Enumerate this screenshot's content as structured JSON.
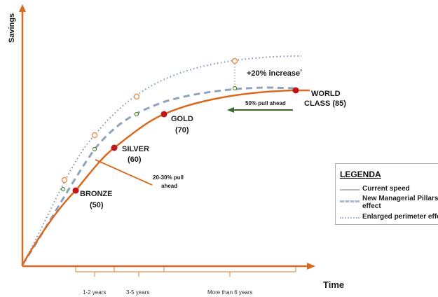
{
  "axes": {
    "y_label": "Savings",
    "x_label": "Time"
  },
  "levels": [
    {
      "name": "BRONZE",
      "value": "(50)"
    },
    {
      "name": "SILVER",
      "value": "(60)"
    },
    {
      "name": "GOLD",
      "value": "(70)"
    },
    {
      "name": "WORLD",
      "name2": "CLASS (85)"
    }
  ],
  "annotations": {
    "increase": "+20% increase",
    "increase_mark": "°",
    "pull_ahead_50": "50% pull ahead",
    "pull_ahead_20_30_line1": "20-30% pull",
    "pull_ahead_20_30_line2": "ahead"
  },
  "time_periods": [
    "1-2 years",
    "3-5 years",
    "More than 6 years"
  ],
  "legend": {
    "title": "LEGENDA",
    "items": [
      {
        "label": "Current speed",
        "style": "solid",
        "color": "#bcbcbc"
      },
      {
        "label": "New Managerial Pillars",
        "label2": "effect",
        "style": "dashed",
        "color": "#a9b8cc"
      },
      {
        "label": "Enlarged perimeter effect",
        "style": "dotted",
        "color": "#a9b8cc"
      }
    ]
  },
  "colors": {
    "axis": "#d9691e",
    "current": "#d9691e",
    "managerial": "#8fa3bd",
    "perimeter": "#7b93b8",
    "level_dot": "#c0141b",
    "open_marker": "#e8914f",
    "arrow_green": "#3c6a2a"
  }
}
